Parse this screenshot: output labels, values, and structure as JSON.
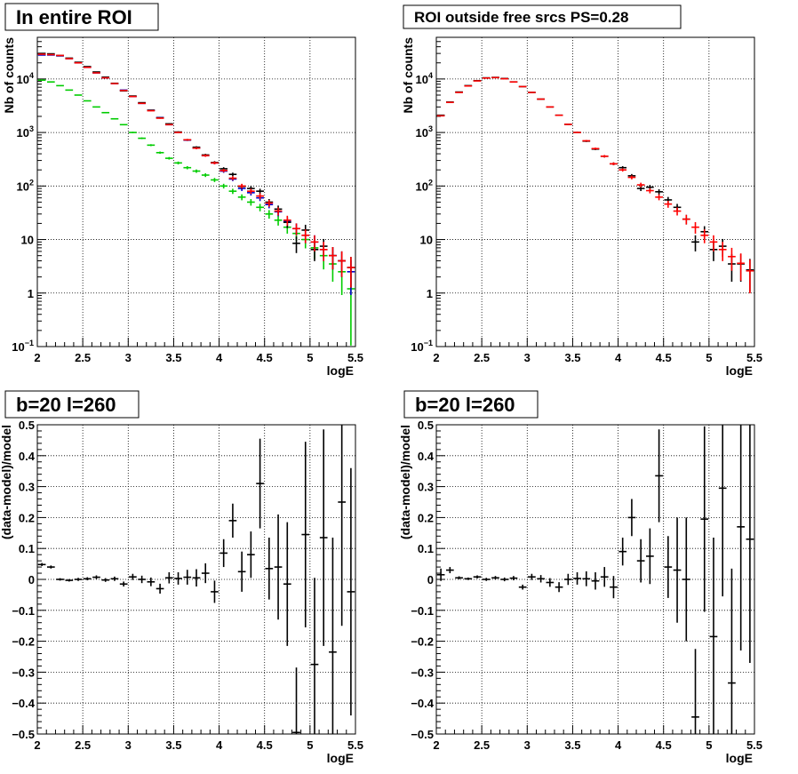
{
  "chart_data": [
    {
      "type": "scatter",
      "title": "In entire ROI",
      "xlabel": "logE",
      "ylabel": "Nb of counts",
      "xlim": [
        2,
        5.5
      ],
      "ylim": [
        0.1,
        60000
      ],
      "yscale": "log",
      "grid": true,
      "xticks": [
        "2",
        "2.5",
        "3",
        "3.5",
        "4",
        "4.5",
        "5",
        "5.5"
      ],
      "yticks": [
        {
          "base": "10",
          "exp": "−1",
          "value": 0.1
        },
        {
          "base": "1",
          "exp": "",
          "value": 1
        },
        {
          "base": "10",
          "exp": "",
          "value": 10
        },
        {
          "base": "10",
          "exp": "2",
          "value": 100
        },
        {
          "base": "10",
          "exp": "3",
          "value": 1000
        },
        {
          "base": "10",
          "exp": "4",
          "value": 10000
        }
      ],
      "series": [
        {
          "color": "#00cc00",
          "x": [
            2.05,
            2.15,
            2.25,
            2.35,
            2.45,
            2.55,
            2.65,
            2.75,
            2.85,
            2.95,
            3.05,
            3.15,
            3.25,
            3.35,
            3.45,
            3.55,
            3.65,
            3.75,
            3.85,
            3.95,
            4.05,
            4.15,
            4.25,
            4.35,
            4.45,
            4.55,
            4.65,
            4.75,
            4.85,
            4.95,
            5.05,
            5.15,
            5.25,
            5.35,
            5.45
          ],
          "y": [
            9500,
            8800,
            7500,
            6200,
            5000,
            3900,
            3000,
            2350,
            1800,
            1400,
            1000,
            780,
            580,
            420,
            330,
            270,
            220,
            190,
            160,
            130,
            100,
            80,
            62,
            50,
            40,
            30,
            23,
            17,
            13,
            10,
            7,
            5,
            3.5,
            2.5,
            1.2
          ]
        },
        {
          "color": "#0000cc",
          "x": [
            2.05,
            2.15,
            2.25,
            2.35,
            2.45,
            2.55,
            2.65,
            2.75,
            2.85,
            2.95,
            3.05,
            3.15,
            3.25,
            3.35,
            3.45,
            3.55,
            3.65,
            3.75,
            3.85,
            3.95,
            4.05,
            4.15,
            4.25,
            4.35,
            4.45,
            4.55,
            4.65,
            4.75,
            4.85,
            4.95,
            5.05,
            5.15,
            5.25,
            5.35,
            5.45
          ],
          "y": [
            28000,
            28000,
            27000,
            24000,
            20000,
            16500,
            13000,
            10500,
            8200,
            6200,
            4700,
            3500,
            2600,
            1900,
            1400,
            1000,
            720,
            510,
            370,
            270,
            190,
            135,
            90,
            75,
            60,
            45,
            33,
            22,
            16,
            12,
            9,
            6.5,
            5,
            4,
            2.5
          ]
        },
        {
          "color": "#000000",
          "x": [
            2.05,
            2.15,
            2.25,
            2.35,
            2.45,
            2.55,
            2.65,
            2.75,
            2.85,
            2.95,
            3.05,
            3.15,
            3.25,
            3.35,
            3.45,
            3.55,
            3.65,
            3.75,
            3.85,
            3.95,
            4.05,
            4.15,
            4.25,
            4.35,
            4.45,
            4.55,
            4.65,
            4.75,
            4.85,
            4.95,
            5.05,
            5.15,
            5.25,
            5.35,
            5.45
          ],
          "y": [
            30000,
            29500,
            27500,
            24500,
            20500,
            17000,
            13500,
            10800,
            8300,
            6000,
            4800,
            3600,
            2600,
            1880,
            1450,
            1020,
            730,
            530,
            380,
            275,
            210,
            165,
            98,
            90,
            80,
            50,
            37,
            21,
            8.5,
            15,
            6.5,
            7.5,
            5,
            4,
            3
          ]
        },
        {
          "color": "#ff0000",
          "x": [
            2.05,
            2.15,
            2.25,
            2.35,
            2.45,
            2.55,
            2.65,
            2.75,
            2.85,
            2.95,
            3.05,
            3.15,
            3.25,
            3.35,
            3.45,
            3.55,
            3.65,
            3.75,
            3.85,
            3.95,
            4.05,
            4.15,
            4.25,
            4.35,
            4.45,
            4.55,
            4.65,
            4.75,
            4.85,
            4.95,
            5.05,
            5.15,
            5.25,
            5.35,
            5.45
          ],
          "y": [
            29000,
            28500,
            27500,
            24000,
            20000,
            16500,
            13000,
            10500,
            8200,
            6100,
            4700,
            3500,
            2550,
            1850,
            1400,
            1000,
            730,
            510,
            370,
            270,
            195,
            140,
            100,
            80,
            65,
            48,
            34,
            23,
            16,
            12,
            9,
            6.5,
            5,
            4,
            3
          ]
        }
      ]
    },
    {
      "type": "scatter",
      "title": "ROI outside free srcs PS=0.28",
      "xlabel": "logE",
      "ylabel": "Nb of counts",
      "xlim": [
        2,
        5.5
      ],
      "ylim": [
        0.1,
        60000
      ],
      "yscale": "log",
      "grid": true,
      "xticks": [
        "2",
        "2.5",
        "3",
        "3.5",
        "4",
        "4.5",
        "5",
        "5.5"
      ],
      "yticks": [
        {
          "base": "10",
          "exp": "−1",
          "value": 0.1
        },
        {
          "base": "1",
          "exp": "",
          "value": 1
        },
        {
          "base": "10",
          "exp": "",
          "value": 10
        },
        {
          "base": "10",
          "exp": "2",
          "value": 100
        },
        {
          "base": "10",
          "exp": "3",
          "value": 1000
        },
        {
          "base": "10",
          "exp": "4",
          "value": 10000
        }
      ],
      "series": [
        {
          "color": "#000000",
          "x": [
            2.05,
            2.15,
            2.25,
            2.35,
            2.45,
            2.55,
            2.65,
            2.75,
            2.85,
            2.95,
            3.05,
            3.15,
            3.25,
            3.35,
            3.45,
            3.55,
            3.65,
            3.75,
            3.85,
            3.95,
            4.05,
            4.15,
            4.25,
            4.35,
            4.45,
            4.55,
            4.65,
            4.75,
            4.85,
            4.95,
            5.05,
            5.15,
            5.25,
            5.35,
            5.45
          ],
          "y": [
            2100,
            3700,
            5700,
            7500,
            9300,
            10500,
            10700,
            10200,
            8800,
            7200,
            5600,
            4200,
            3000,
            2100,
            1420,
            1000,
            690,
            490,
            360,
            260,
            220,
            155,
            90,
            95,
            78,
            55,
            40,
            24,
            9,
            14,
            6.5,
            7.5,
            3.5,
            3.5,
            2.7
          ]
        },
        {
          "color": "#ff0000",
          "x": [
            2.05,
            2.15,
            2.25,
            2.35,
            2.45,
            2.55,
            2.65,
            2.75,
            2.85,
            2.95,
            3.05,
            3.15,
            3.25,
            3.35,
            3.45,
            3.55,
            3.65,
            3.75,
            3.85,
            3.95,
            4.05,
            4.15,
            4.25,
            4.35,
            4.45,
            4.55,
            4.65,
            4.75,
            4.85,
            4.95,
            5.05,
            5.15,
            5.25,
            5.35,
            5.45
          ],
          "y": [
            2050,
            3650,
            5600,
            7400,
            9200,
            10400,
            10600,
            10100,
            8800,
            7200,
            5600,
            4200,
            3000,
            2100,
            1420,
            1000,
            700,
            500,
            360,
            260,
            200,
            145,
            105,
            82,
            62,
            46,
            34,
            24,
            17,
            12,
            9,
            6.5,
            4.8,
            3.6,
            2.6
          ]
        }
      ]
    },
    {
      "type": "scatter",
      "title": "b=20 l=260",
      "xlabel": "logE",
      "ylabel": "(data-model)/model",
      "xlim": [
        2,
        5.5
      ],
      "ylim": [
        -0.5,
        0.5
      ],
      "grid": true,
      "xticks": [
        "2",
        "2.5",
        "3",
        "3.5",
        "4",
        "4.5",
        "5",
        "5.5"
      ],
      "yticks": [
        "−0.5",
        "−0.4",
        "−0.3",
        "−0.2",
        "−0.1",
        "0",
        "0.1",
        "0.2",
        "0.3",
        "0.4",
        "0.5"
      ],
      "series": [
        {
          "color": "#000000",
          "x": [
            2.05,
            2.15,
            2.25,
            2.35,
            2.45,
            2.55,
            2.65,
            2.75,
            2.85,
            2.95,
            3.05,
            3.15,
            3.25,
            3.35,
            3.45,
            3.55,
            3.65,
            3.75,
            3.85,
            3.95,
            4.05,
            4.15,
            4.25,
            4.35,
            4.45,
            4.55,
            4.65,
            4.75,
            4.85,
            4.95,
            5.05,
            5.15,
            5.25,
            5.35,
            5.45
          ],
          "y": [
            0.048,
            0.04,
            0.0,
            -0.003,
            0.0,
            0.002,
            0.007,
            -0.002,
            0.002,
            -0.015,
            0.008,
            0.0,
            -0.008,
            -0.03,
            0.005,
            0.003,
            0.007,
            0.005,
            0.02,
            -0.04,
            0.085,
            0.19,
            0.025,
            0.08,
            0.31,
            0.035,
            0.04,
            -0.015,
            -0.495,
            0.145,
            -0.275,
            0.135,
            -0.235,
            0.25,
            -0.04
          ],
          "err": [
            0.005,
            0.005,
            0.004,
            0.004,
            0.005,
            0.005,
            0.006,
            0.006,
            0.007,
            0.008,
            0.01,
            0.012,
            0.014,
            0.016,
            0.018,
            0.02,
            0.024,
            0.028,
            0.032,
            0.036,
            0.045,
            0.055,
            0.065,
            0.075,
            0.145,
            0.1,
            0.17,
            0.2,
            0.21,
            0.3,
            0.28,
            0.35,
            0.37,
            0.4,
            0.4
          ]
        }
      ]
    },
    {
      "type": "scatter",
      "title": "b=20 l=260",
      "xlabel": "logE",
      "ylabel": "(data-model)/model",
      "xlim": [
        2,
        5.5
      ],
      "ylim": [
        -0.5,
        0.5
      ],
      "grid": true,
      "xticks": [
        "2",
        "2.5",
        "3",
        "3.5",
        "4",
        "4.5",
        "5",
        "5.5"
      ],
      "yticks": [
        "−0.5",
        "−0.4",
        "−0.3",
        "−0.2",
        "−0.1",
        "0",
        "0.1",
        "0.2",
        "0.3",
        "0.4",
        "0.5"
      ],
      "series": [
        {
          "color": "#000000",
          "x": [
            2.05,
            2.15,
            2.25,
            2.35,
            2.45,
            2.55,
            2.65,
            2.75,
            2.85,
            2.95,
            3.05,
            3.15,
            3.25,
            3.35,
            3.45,
            3.55,
            3.65,
            3.75,
            3.85,
            3.95,
            4.05,
            4.15,
            4.25,
            4.35,
            4.45,
            4.55,
            4.65,
            4.75,
            4.85,
            4.95,
            5.05,
            5.15,
            5.25,
            5.35,
            5.45
          ],
          "y": [
            0.015,
            0.03,
            0.005,
            0.002,
            0.008,
            0.0,
            0.005,
            0.0,
            0.004,
            -0.025,
            0.008,
            0.002,
            -0.01,
            -0.025,
            0.0,
            0.003,
            0.002,
            -0.005,
            0.008,
            -0.025,
            0.09,
            0.2,
            0.06,
            0.075,
            0.335,
            0.04,
            0.03,
            0.0,
            -0.445,
            0.195,
            -0.185,
            0.295,
            -0.335,
            0.17,
            0.13
          ],
          "err": [
            0.02,
            0.01,
            0.005,
            0.004,
            0.005,
            0.005,
            0.006,
            0.006,
            0.007,
            0.008,
            0.01,
            0.012,
            0.014,
            0.016,
            0.018,
            0.02,
            0.024,
            0.028,
            0.032,
            0.036,
            0.045,
            0.06,
            0.07,
            0.09,
            0.15,
            0.1,
            0.17,
            0.2,
            0.22,
            0.3,
            0.32,
            0.35,
            0.37,
            0.4,
            0.4
          ]
        }
      ]
    }
  ]
}
